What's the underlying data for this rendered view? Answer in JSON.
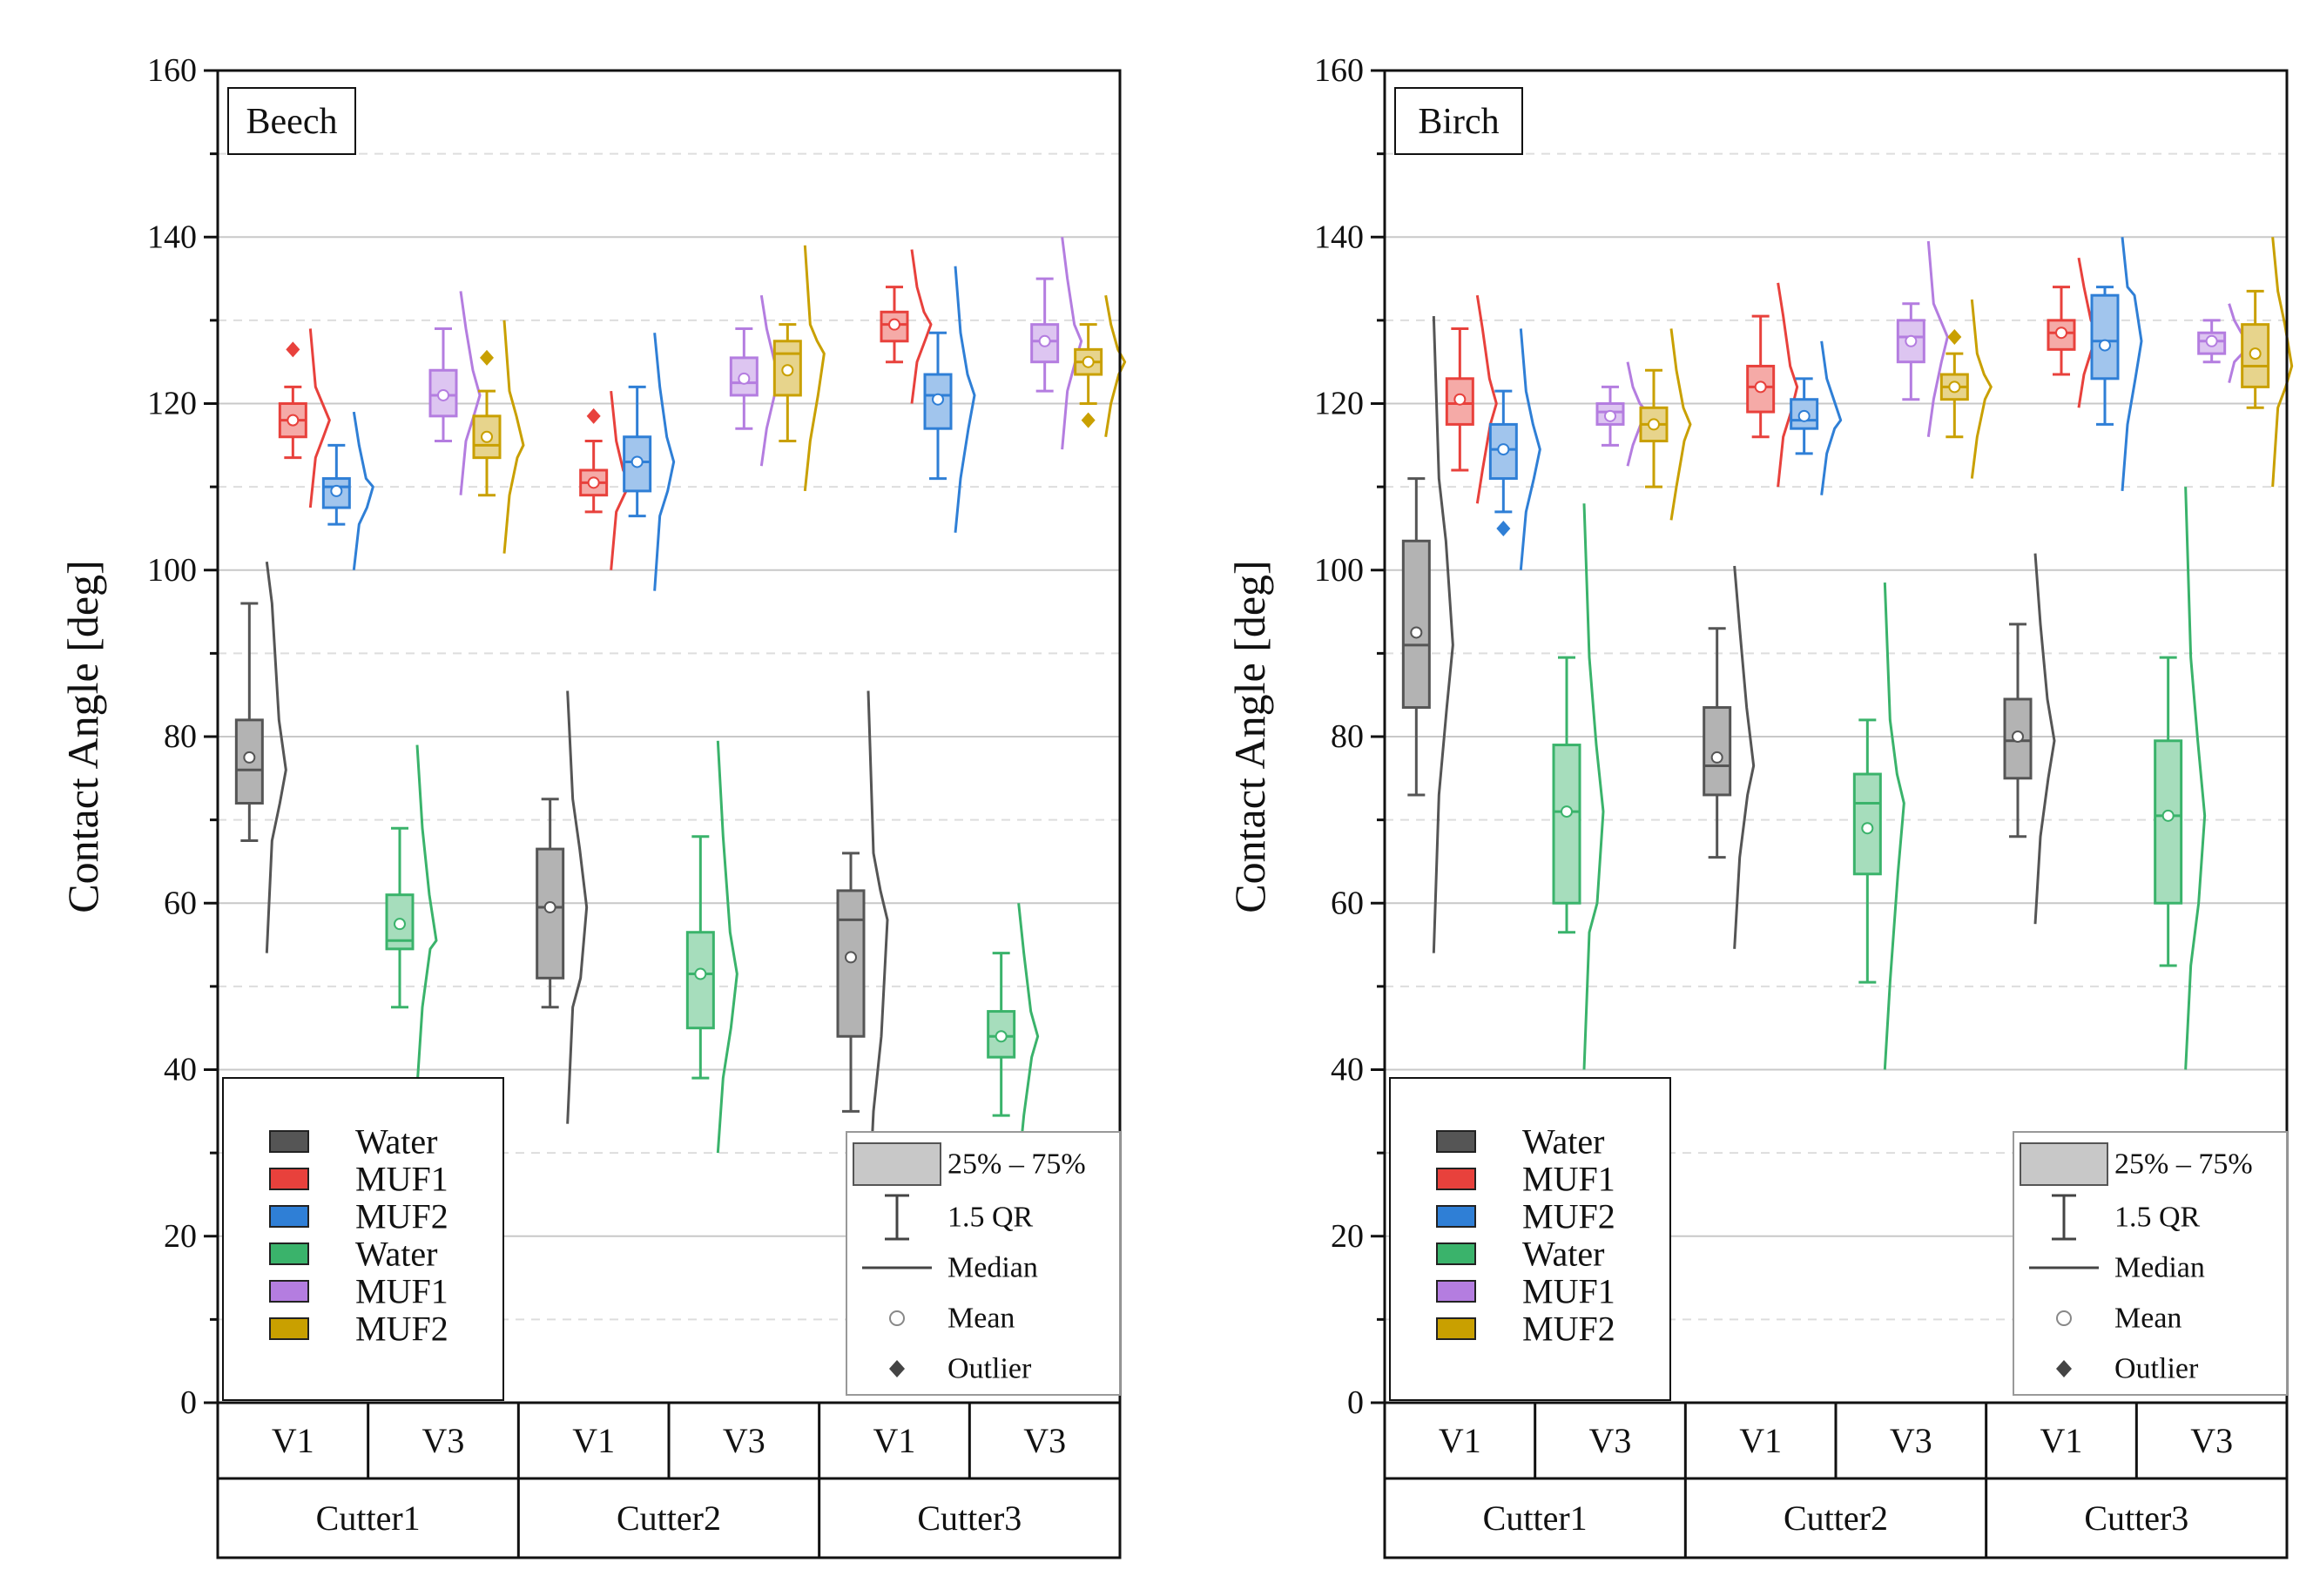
{
  "chart_data": [
    {
      "type": "box",
      "title": "Beech",
      "ylabel": "Contact Angle [deg]",
      "ylim": [
        0,
        160
      ],
      "yticks": [
        0,
        20,
        40,
        60,
        80,
        100,
        120,
        140,
        160
      ],
      "grid": true,
      "groups": [
        {
          "name": "Cutter1",
          "versions": [
            "V1",
            "V3"
          ]
        },
        {
          "name": "Cutter2",
          "versions": [
            "V1",
            "V3"
          ]
        },
        {
          "name": "Cutter3",
          "versions": [
            "V1",
            "V3"
          ]
        }
      ],
      "series": [
        {
          "group": "Cutter1",
          "version": "V1",
          "liquid": "Water",
          "color": "#555555",
          "q1": 72,
          "median": 76,
          "q3": 82,
          "mean": 77.5,
          "whisker_low": 67.5,
          "whisker_high": 96,
          "min": 54,
          "max": 101,
          "outliers": []
        },
        {
          "group": "Cutter1",
          "version": "V1",
          "liquid": "MUF1",
          "color": "#e8413c",
          "q1": 116,
          "median": 118,
          "q3": 120,
          "mean": 118,
          "whisker_low": 113.5,
          "whisker_high": 122,
          "min": 107.5,
          "max": 129,
          "outliers": [
            126.5
          ]
        },
        {
          "group": "Cutter1",
          "version": "V1",
          "liquid": "MUF2",
          "color": "#2f7fd6",
          "q1": 107.5,
          "median": 110,
          "q3": 111,
          "mean": 109.5,
          "whisker_low": 105.5,
          "whisker_high": 115,
          "min": 100,
          "max": 119,
          "outliers": []
        },
        {
          "group": "Cutter1",
          "version": "V3",
          "liquid": "Water",
          "color": "#3ab36b",
          "q1": 54.5,
          "median": 55.5,
          "q3": 61,
          "mean": 57.5,
          "whisker_low": 47.5,
          "whisker_high": 69,
          "min": 38,
          "max": 79,
          "outliers": []
        },
        {
          "group": "Cutter1",
          "version": "V3",
          "liquid": "MUF1",
          "color": "#b47de0",
          "q1": 118.5,
          "median": 121,
          "q3": 124,
          "mean": 121,
          "whisker_low": 115.5,
          "whisker_high": 129,
          "min": 109,
          "max": 133.5,
          "outliers": []
        },
        {
          "group": "Cutter1",
          "version": "V3",
          "liquid": "MUF2",
          "color": "#c9a000",
          "q1": 113.5,
          "median": 115,
          "q3": 118.5,
          "mean": 116,
          "whisker_low": 109,
          "whisker_high": 121.5,
          "min": 102,
          "max": 130,
          "outliers": [
            125.5
          ]
        },
        {
          "group": "Cutter2",
          "version": "V1",
          "liquid": "Water",
          "color": "#555555",
          "q1": 51,
          "median": 59.5,
          "q3": 66.5,
          "mean": 59.5,
          "whisker_low": 47.5,
          "whisker_high": 72.5,
          "min": 33.5,
          "max": 85.5,
          "outliers": []
        },
        {
          "group": "Cutter2",
          "version": "V1",
          "liquid": "MUF1",
          "color": "#e8413c",
          "q1": 109,
          "median": 110.5,
          "q3": 112,
          "mean": 110.5,
          "whisker_low": 107,
          "whisker_high": 115.5,
          "min": 100,
          "max": 121.5,
          "outliers": [
            118.5
          ]
        },
        {
          "group": "Cutter2",
          "version": "V1",
          "liquid": "MUF2",
          "color": "#2f7fd6",
          "q1": 109.5,
          "median": 113,
          "q3": 116,
          "mean": 113,
          "whisker_low": 106.5,
          "whisker_high": 122,
          "min": 97.5,
          "max": 128.5,
          "outliers": []
        },
        {
          "group": "Cutter2",
          "version": "V3",
          "liquid": "Water",
          "color": "#3ab36b",
          "q1": 45,
          "median": 51.5,
          "q3": 56.5,
          "mean": 51.5,
          "whisker_low": 39,
          "whisker_high": 68,
          "min": 30,
          "max": 79.5,
          "outliers": []
        },
        {
          "group": "Cutter2",
          "version": "V3",
          "liquid": "MUF1",
          "color": "#b47de0",
          "q1": 121,
          "median": 122.5,
          "q3": 125.5,
          "mean": 123,
          "whisker_low": 117,
          "whisker_high": 129,
          "min": 112.5,
          "max": 133,
          "outliers": []
        },
        {
          "group": "Cutter2",
          "version": "V3",
          "liquid": "MUF2",
          "color": "#c9a000",
          "q1": 121,
          "median": 126,
          "q3": 127.5,
          "mean": 124,
          "whisker_low": 115.5,
          "whisker_high": 129.5,
          "min": 109.5,
          "max": 139,
          "outliers": []
        },
        {
          "group": "Cutter3",
          "version": "V1",
          "liquid": "Water",
          "color": "#555555",
          "q1": 44,
          "median": 58,
          "q3": 61.5,
          "mean": 53.5,
          "whisker_low": 35,
          "whisker_high": 66,
          "min": 22,
          "max": 85.5,
          "outliers": []
        },
        {
          "group": "Cutter3",
          "version": "V1",
          "liquid": "MUF1",
          "color": "#e8413c",
          "q1": 127.5,
          "median": 129.5,
          "q3": 131,
          "mean": 129.5,
          "whisker_low": 125,
          "whisker_high": 134,
          "min": 120,
          "max": 138.5,
          "outliers": []
        },
        {
          "group": "Cutter3",
          "version": "V1",
          "liquid": "MUF2",
          "color": "#2f7fd6",
          "q1": 117,
          "median": 121,
          "q3": 123.5,
          "mean": 120.5,
          "whisker_low": 111,
          "whisker_high": 128.5,
          "min": 104.5,
          "max": 136.5,
          "outliers": []
        },
        {
          "group": "Cutter3",
          "version": "V3",
          "liquid": "Water",
          "color": "#3ab36b",
          "q1": 41.5,
          "median": 44,
          "q3": 47,
          "mean": 44,
          "whisker_low": 34.5,
          "whisker_high": 54,
          "min": 28,
          "max": 60,
          "outliers": []
        },
        {
          "group": "Cutter3",
          "version": "V3",
          "liquid": "MUF1",
          "color": "#b47de0",
          "q1": 125,
          "median": 127.5,
          "q3": 129.5,
          "mean": 127.5,
          "whisker_low": 121.5,
          "whisker_high": 135,
          "min": 114.5,
          "max": 140,
          "outliers": []
        },
        {
          "group": "Cutter3",
          "version": "V3",
          "liquid": "MUF2",
          "color": "#c9a000",
          "q1": 123.5,
          "median": 125,
          "q3": 126.5,
          "mean": 125,
          "whisker_low": 120,
          "whisker_high": 129.5,
          "min": 116,
          "max": 133,
          "outliers": [
            118
          ]
        }
      ]
    },
    {
      "type": "box",
      "title": "Birch",
      "ylabel": "Contact Angle [deg]",
      "ylim": [
        0,
        160
      ],
      "yticks": [
        0,
        20,
        40,
        60,
        80,
        100,
        120,
        140,
        160
      ],
      "grid": true,
      "groups": [
        {
          "name": "Cutter1",
          "versions": [
            "V1",
            "V3"
          ]
        },
        {
          "name": "Cutter2",
          "versions": [
            "V1",
            "V3"
          ]
        },
        {
          "name": "Cutter3",
          "versions": [
            "V1",
            "V3"
          ]
        }
      ],
      "series": [
        {
          "group": "Cutter1",
          "version": "V1",
          "liquid": "Water",
          "color": "#555555",
          "q1": 83.5,
          "median": 91,
          "q3": 103.5,
          "mean": 92.5,
          "whisker_low": 73,
          "whisker_high": 111,
          "min": 54,
          "max": 130.5,
          "outliers": []
        },
        {
          "group": "Cutter1",
          "version": "V1",
          "liquid": "MUF1",
          "color": "#e8413c",
          "q1": 117.5,
          "median": 120,
          "q3": 123,
          "mean": 120.5,
          "whisker_low": 112,
          "whisker_high": 129,
          "min": 108,
          "max": 133,
          "outliers": []
        },
        {
          "group": "Cutter1",
          "version": "V1",
          "liquid": "MUF2",
          "color": "#2f7fd6",
          "q1": 111,
          "median": 114.5,
          "q3": 117.5,
          "mean": 114.5,
          "whisker_low": 107,
          "whisker_high": 121.5,
          "min": 100,
          "max": 129,
          "outliers": [
            105
          ]
        },
        {
          "group": "Cutter1",
          "version": "V3",
          "liquid": "Water",
          "color": "#3ab36b",
          "q1": 60,
          "median": 71,
          "q3": 79,
          "mean": 71,
          "whisker_low": 56.5,
          "whisker_high": 89.5,
          "min": 40,
          "max": 108,
          "outliers": []
        },
        {
          "group": "Cutter1",
          "version": "V3",
          "liquid": "MUF1",
          "color": "#b47de0",
          "q1": 117.5,
          "median": 119,
          "q3": 120,
          "mean": 118.5,
          "whisker_low": 115,
          "whisker_high": 122,
          "min": 112.5,
          "max": 125,
          "outliers": []
        },
        {
          "group": "Cutter1",
          "version": "V3",
          "liquid": "MUF2",
          "color": "#c9a000",
          "q1": 115.5,
          "median": 117.5,
          "q3": 119.5,
          "mean": 117.5,
          "whisker_low": 110,
          "whisker_high": 124,
          "min": 106,
          "max": 129,
          "outliers": []
        },
        {
          "group": "Cutter2",
          "version": "V1",
          "liquid": "Water",
          "color": "#555555",
          "q1": 73,
          "median": 76.5,
          "q3": 83.5,
          "mean": 77.5,
          "whisker_low": 65.5,
          "whisker_high": 93,
          "min": 54.5,
          "max": 100.5,
          "outliers": []
        },
        {
          "group": "Cutter2",
          "version": "V1",
          "liquid": "MUF1",
          "color": "#e8413c",
          "q1": 119,
          "median": 122,
          "q3": 124.5,
          "mean": 122,
          "whisker_low": 116,
          "whisker_high": 130.5,
          "min": 110,
          "max": 134.5,
          "outliers": []
        },
        {
          "group": "Cutter2",
          "version": "V1",
          "liquid": "MUF2",
          "color": "#2f7fd6",
          "q1": 117,
          "median": 118,
          "q3": 120.5,
          "mean": 118.5,
          "whisker_low": 114,
          "whisker_high": 123,
          "min": 109,
          "max": 127.5,
          "outliers": []
        },
        {
          "group": "Cutter2",
          "version": "V3",
          "liquid": "Water",
          "color": "#3ab36b",
          "q1": 63.5,
          "median": 72,
          "q3": 75.5,
          "mean": 69,
          "whisker_low": 50.5,
          "whisker_high": 82,
          "min": 40,
          "max": 98.5,
          "outliers": []
        },
        {
          "group": "Cutter2",
          "version": "V3",
          "liquid": "MUF1",
          "color": "#b47de0",
          "q1": 125,
          "median": 128,
          "q3": 130,
          "mean": 127.5,
          "whisker_low": 120.5,
          "whisker_high": 132,
          "min": 116,
          "max": 139.5,
          "outliers": []
        },
        {
          "group": "Cutter2",
          "version": "V3",
          "liquid": "MUF2",
          "color": "#c9a000",
          "q1": 120.5,
          "median": 122,
          "q3": 123.5,
          "mean": 122,
          "whisker_low": 116,
          "whisker_high": 126,
          "min": 111,
          "max": 132.5,
          "outliers": [
            128
          ]
        },
        {
          "group": "Cutter3",
          "version": "V1",
          "liquid": "Water",
          "color": "#555555",
          "q1": 75,
          "median": 79.5,
          "q3": 84.5,
          "mean": 80,
          "whisker_low": 68,
          "whisker_high": 93.5,
          "min": 57.5,
          "max": 102,
          "outliers": []
        },
        {
          "group": "Cutter3",
          "version": "V1",
          "liquid": "MUF1",
          "color": "#e8413c",
          "q1": 126.5,
          "median": 128.5,
          "q3": 130,
          "mean": 128.5,
          "whisker_low": 123.5,
          "whisker_high": 134,
          "min": 119.5,
          "max": 137.5,
          "outliers": []
        },
        {
          "group": "Cutter3",
          "version": "V1",
          "liquid": "MUF2",
          "color": "#2f7fd6",
          "q1": 123,
          "median": 127.5,
          "q3": 133,
          "mean": 127,
          "whisker_low": 117.5,
          "whisker_high": 134,
          "min": 109.5,
          "max": 140,
          "outliers": []
        },
        {
          "group": "Cutter3",
          "version": "V3",
          "liquid": "Water",
          "color": "#3ab36b",
          "q1": 60,
          "median": 70.5,
          "q3": 79.5,
          "mean": 70.5,
          "whisker_low": 52.5,
          "whisker_high": 89.5,
          "min": 40,
          "max": 110,
          "outliers": []
        },
        {
          "group": "Cutter3",
          "version": "V3",
          "liquid": "MUF1",
          "color": "#b47de0",
          "q1": 126,
          "median": 127.5,
          "q3": 128.5,
          "mean": 127.5,
          "whisker_low": 125,
          "whisker_high": 130,
          "min": 122.5,
          "max": 132,
          "outliers": []
        },
        {
          "group": "Cutter3",
          "version": "V3",
          "liquid": "MUF2",
          "color": "#c9a000",
          "q1": 122,
          "median": 124.5,
          "q3": 129.5,
          "mean": 126,
          "whisker_low": 119.5,
          "whisker_high": 133.5,
          "min": 110,
          "max": 140,
          "outliers": []
        }
      ]
    }
  ],
  "legend": {
    "items": [
      {
        "label": "Water",
        "color": "#555555"
      },
      {
        "label": "MUF1",
        "color": "#e8413c"
      },
      {
        "label": "MUF2",
        "color": "#2f7fd6"
      },
      {
        "label": "Water",
        "color": "#3ab36b"
      },
      {
        "label": "MUF1",
        "color": "#b47de0"
      },
      {
        "label": "MUF2",
        "color": "#c9a000"
      }
    ]
  },
  "box_key": {
    "range_label": "25% – 75%",
    "whisker_label": "1.5 QR",
    "median_label": "Median",
    "mean_label": "Mean",
    "outlier_label": "Outlier"
  }
}
